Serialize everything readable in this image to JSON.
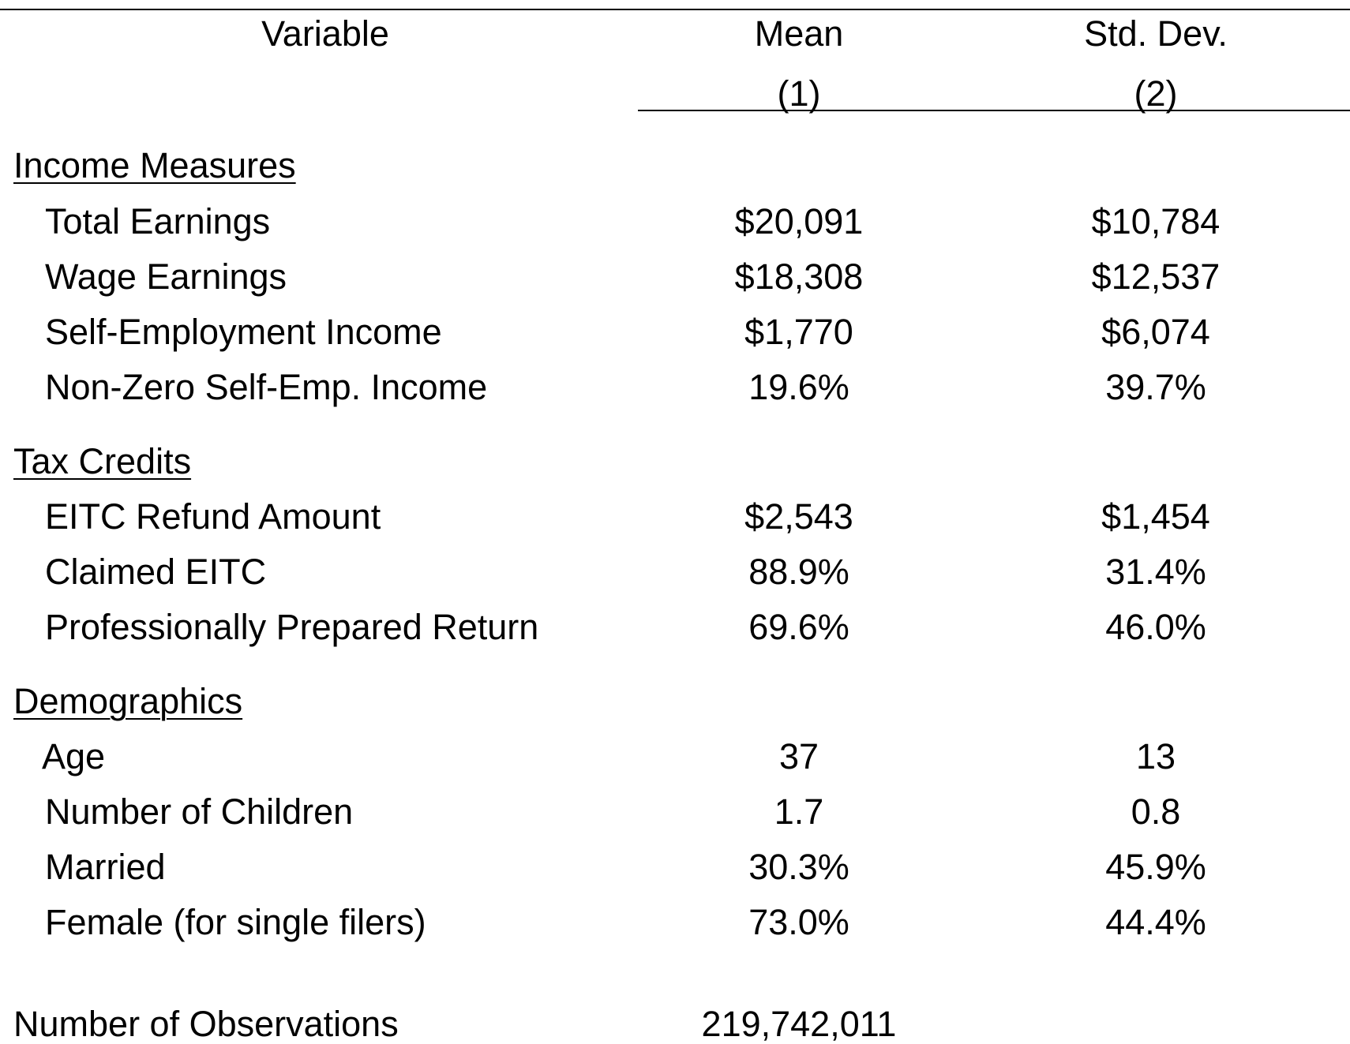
{
  "header": {
    "variable": "Variable",
    "mean": "Mean",
    "mean_num": "(1)",
    "sd": "Std. Dev.",
    "sd_num": "(2)"
  },
  "sections": [
    {
      "title": "Income Measures",
      "rows": [
        {
          "label": "Total Earnings",
          "mean": "$20,091",
          "sd": "$10,784"
        },
        {
          "label": "Wage Earnings",
          "mean": "$18,308",
          "sd": "$12,537"
        },
        {
          "label": "Self-Employment Income",
          "mean": "$1,770",
          "sd": "$6,074"
        },
        {
          "label": "Non-Zero Self-Emp. Income",
          "mean": "19.6%",
          "sd": "39.7%"
        }
      ]
    },
    {
      "title": "Tax Credits",
      "rows": [
        {
          "label": "EITC Refund Amount",
          "mean": "$2,543",
          "sd": "$1,454"
        },
        {
          "label": "Claimed EITC",
          "mean": "88.9%",
          "sd": "31.4%"
        },
        {
          "label": "Professionally Prepared Return",
          "mean": "69.6%",
          "sd": "46.0%"
        }
      ]
    },
    {
      "title": "Demographics",
      "rows": [
        {
          "label": "Age",
          "mean": "37",
          "sd": "13"
        },
        {
          "label": "Number of Children",
          "mean": "1.7",
          "sd": "0.8"
        },
        {
          "label": "Married",
          "mean": "30.3%",
          "sd": "45.9%"
        },
        {
          "label": "Female (for single filers)",
          "mean": "73.0%",
          "sd": "44.4%"
        }
      ]
    }
  ],
  "observations": {
    "label": "Number of Observations",
    "value": "219,742,011"
  }
}
